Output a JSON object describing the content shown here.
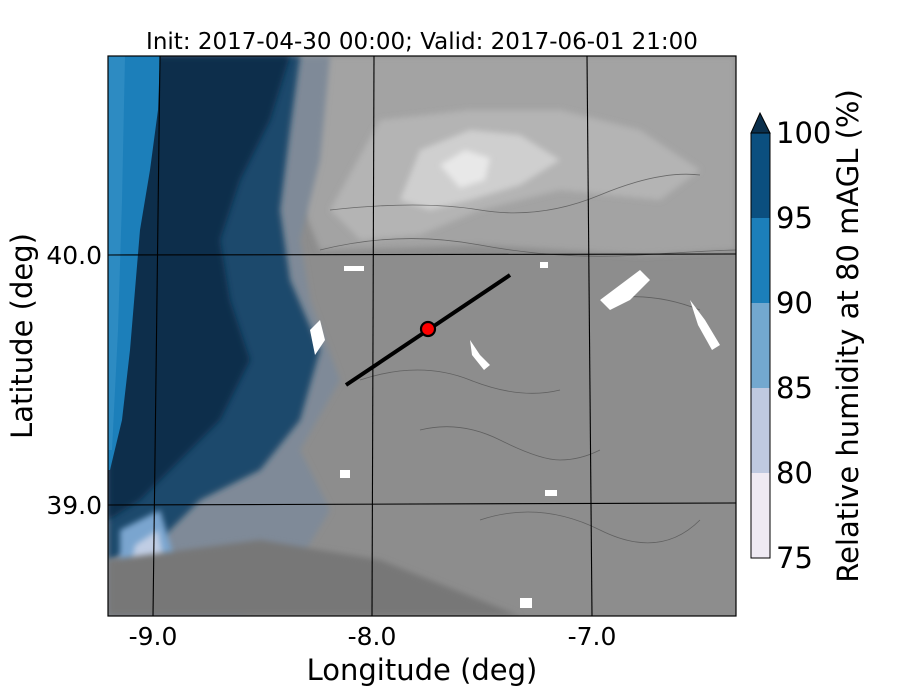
{
  "title": "Init: 2017-04-30 00:00; Valid: 2017-06-01 21:00",
  "axes": {
    "xlabel": "Longitude (deg)",
    "ylabel": "Latitude (deg)",
    "xticks": [
      "-9.0",
      "-8.0",
      "-7.0"
    ],
    "yticks": [
      "40.0",
      "39.0"
    ]
  },
  "colorbar": {
    "label": "Relative humidity at 80 mAGL (%)",
    "ticks": [
      "100",
      "95",
      "90",
      "85",
      "80",
      "75"
    ],
    "levels": [
      75,
      80,
      85,
      90,
      95,
      100
    ],
    "colors": [
      "#efeaf3",
      "#bfc9e0",
      "#73a8cf",
      "#1c7fba",
      "#0a5689",
      "#0b2f4c"
    ],
    "extend": "max"
  },
  "map": {
    "land_color": "#8c8c8c",
    "transect": {
      "start": {
        "lon": -8.12,
        "lat": 39.5
      },
      "end": {
        "lon": -7.37,
        "lat": 39.93
      }
    },
    "marker": {
      "lon": -7.75,
      "lat": 39.71,
      "color": "#ff0000"
    }
  }
}
